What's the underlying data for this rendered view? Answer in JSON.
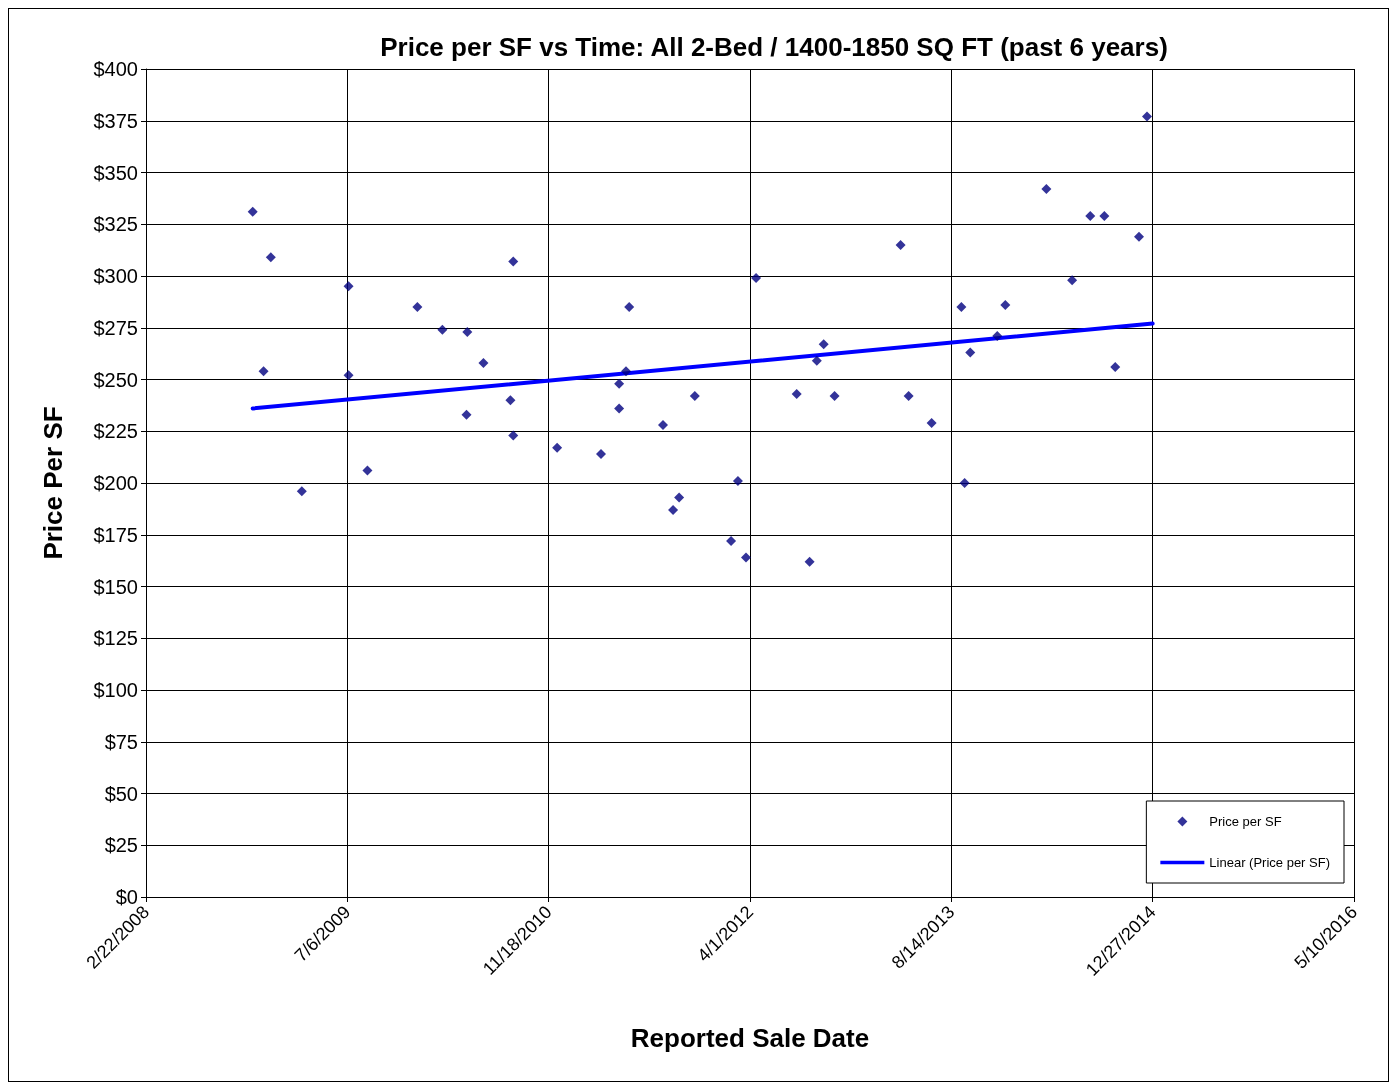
{
  "chart_data": {
    "type": "scatter",
    "title": "Price per SF vs Time: All 2-Bed / 1400-1850 SQ FT (past 6 years)",
    "xlabel": "Reported Sale Date",
    "ylabel": "Price Per SF",
    "xlim": [
      "2008-02-22",
      "2016-05-10"
    ],
    "xticks": [
      {
        "value": "2008-02-22",
        "label": "2/22/2008"
      },
      {
        "value": "2009-07-06",
        "label": "7/6/2009"
      },
      {
        "value": "2010-11-18",
        "label": "11/18/2010"
      },
      {
        "value": "2012-04-01",
        "label": "4/1/2012"
      },
      {
        "value": "2013-08-14",
        "label": "8/14/2013"
      },
      {
        "value": "2014-12-27",
        "label": "12/27/2014"
      },
      {
        "value": "2016-05-10",
        "label": "5/10/2016"
      }
    ],
    "ylim": [
      0,
      400
    ],
    "yticks": [
      {
        "value": 0,
        "label": "$0"
      },
      {
        "value": 25,
        "label": "$25"
      },
      {
        "value": 50,
        "label": "$50"
      },
      {
        "value": 75,
        "label": "$75"
      },
      {
        "value": 100,
        "label": "$100"
      },
      {
        "value": 125,
        "label": "$125"
      },
      {
        "value": 150,
        "label": "$150"
      },
      {
        "value": 175,
        "label": "$175"
      },
      {
        "value": 200,
        "label": "$200"
      },
      {
        "value": 225,
        "label": "$225"
      },
      {
        "value": 250,
        "label": "$250"
      },
      {
        "value": 275,
        "label": "$275"
      },
      {
        "value": 300,
        "label": "$300"
      },
      {
        "value": 325,
        "label": "$325"
      },
      {
        "value": 350,
        "label": "$350"
      },
      {
        "value": 375,
        "label": "$375"
      },
      {
        "value": 400,
        "label": "$400"
      }
    ],
    "grid": true,
    "legend": "bottom right",
    "series": [
      {
        "name": "Price per SF",
        "marker": "diamond",
        "color": "#000080",
        "x": [
          "2008-11-13",
          "2008-12-28",
          "2008-12-10",
          "2009-03-15",
          "2009-07-09",
          "2009-07-09",
          "2009-08-25",
          "2009-12-27",
          "2010-02-27",
          "2010-04-30",
          "2010-04-28",
          "2010-06-09",
          "2010-08-15",
          "2010-08-22",
          "2010-08-22",
          "2010-12-09",
          "2011-03-28",
          "2011-05-12",
          "2011-05-12",
          "2011-05-29",
          "2011-06-06",
          "2011-08-29",
          "2011-09-23",
          "2011-10-08",
          "2011-11-16",
          "2012-02-14",
          "2012-03-02",
          "2012-03-22",
          "2012-04-16",
          "2012-07-26",
          "2012-08-27",
          "2012-09-14",
          "2012-10-01",
          "2012-10-28",
          "2013-04-10",
          "2013-04-30",
          "2013-06-26",
          "2013-09-08",
          "2013-09-16",
          "2013-09-30",
          "2013-12-06",
          "2013-12-26",
          "2014-04-07",
          "2014-06-10",
          "2014-07-25",
          "2014-08-29",
          "2014-09-25",
          "2014-11-23",
          "2014-12-13"
        ],
        "values": [
          331,
          309,
          254,
          196,
          295,
          252,
          206,
          285,
          274,
          273,
          233,
          258,
          240,
          307,
          223,
          217,
          214,
          248,
          236,
          254,
          285,
          228,
          187,
          193,
          242,
          172,
          201,
          164,
          299,
          243,
          162,
          259,
          267,
          242,
          315,
          242,
          229,
          285,
          200,
          263,
          271,
          286,
          342,
          298,
          329,
          329,
          256,
          319,
          377
        ]
      },
      {
        "name": "Linear (Price per SF)",
        "type": "line",
        "marker": "none",
        "line_style": "solid",
        "color": "#0000ff",
        "x": [
          "2008-11-13",
          "2014-12-27"
        ],
        "values": [
          236,
          277
        ]
      }
    ]
  }
}
